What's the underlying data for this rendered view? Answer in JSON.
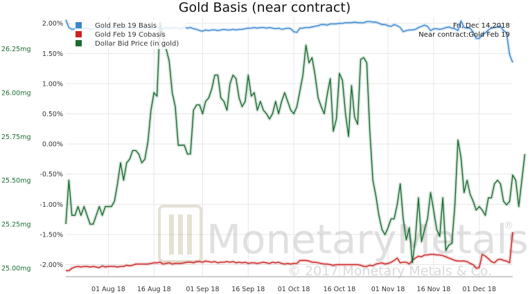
{
  "chart_data": {
    "type": "line",
    "title": "Gold Basis (near contract)",
    "annotation_date": "Fri, Dec 14,2018",
    "annotation_contract": "Near contract:Gold Feb 19",
    "watermark": {
      "brand": "MonetaryMetals",
      "mark": "®",
      "copyright": "© 2017 Monetary Metals & Co."
    },
    "x_ticks": [
      "01 Aug 18",
      "16 Aug 18",
      "01 Sep 18",
      "16 Sep 18",
      "01 Oct 18",
      "16 Oct 18",
      "01 Nov 18",
      "16 Nov 18",
      "01 Dec 18"
    ],
    "x_tick_index": [
      14,
      29,
      45,
      60,
      75,
      90,
      106,
      121,
      136
    ],
    "left_axis": {
      "ticks": [
        "2.00%",
        "1.50%",
        "1.00%",
        "0.50%",
        "0.00%",
        "-0.50%",
        "-1.00%",
        "-1.50%",
        "-2.00%"
      ],
      "range": [
        -2.2,
        2.1
      ]
    },
    "right_axis": {
      "ticks": [
        "26.25mg",
        "26.00mg",
        "25.75mg",
        "25.50mg",
        "25.25mg",
        "25.00mg"
      ],
      "range": [
        24.95,
        26.43
      ]
    },
    "series": [
      {
        "name": "Gold Feb 19 Basis",
        "color": "#3a86d0",
        "axis": "left",
        "values": [
          2.06,
          1.93,
          1.9,
          1.91,
          1.9,
          1.91,
          1.92,
          1.92,
          1.9,
          1.91,
          1.92,
          1.91,
          1.92,
          1.92,
          1.91,
          1.92,
          1.93,
          1.92,
          1.93,
          1.94,
          1.93,
          1.94,
          1.93,
          1.92,
          1.93,
          1.94,
          1.92,
          1.93,
          1.92,
          1.93,
          1.94,
          1.92,
          1.91,
          1.93,
          1.92,
          1.92,
          1.93,
          1.92,
          1.91,
          1.93,
          1.92,
          1.93,
          1.91,
          1.9,
          1.88,
          1.87,
          1.89,
          1.88,
          1.89,
          1.89,
          1.88,
          1.89,
          1.9,
          1.89,
          1.89,
          1.9,
          1.89,
          1.9,
          1.9,
          1.91,
          1.92,
          1.92,
          1.93,
          1.92,
          1.93,
          1.93,
          1.92,
          1.93,
          1.92,
          1.91,
          1.92,
          1.9,
          1.91,
          1.92,
          1.91,
          1.86,
          1.85,
          1.92,
          1.92,
          1.93,
          1.93,
          1.94,
          1.95,
          1.96,
          1.98,
          1.98,
          1.97,
          1.99,
          1.99,
          1.99,
          2.0,
          2.0,
          2.01,
          2.01,
          2.01,
          2.02,
          2.01,
          2.01,
          2.01,
          2.03,
          2.03,
          2.02,
          2.02,
          2.0,
          1.98,
          1.98,
          1.96,
          1.95,
          1.98,
          1.96,
          1.93,
          1.86,
          1.88,
          1.89,
          1.89,
          1.9,
          1.93,
          1.95,
          1.97,
          1.95,
          1.88,
          1.91,
          1.91,
          1.9,
          1.91,
          1.93,
          1.94,
          1.92,
          1.91,
          1.88,
          2.04,
          1.93,
          1.92,
          1.92,
          1.85,
          1.75,
          1.75,
          1.81,
          1.84,
          1.89,
          1.92,
          1.93,
          1.94,
          1.95,
          1.88,
          1.84,
          1.48,
          1.35
        ]
      },
      {
        "name": "Gold Feb 19 Cobasis",
        "color": "#cc2222",
        "axis": "left",
        "values": [
          -2.1,
          -2.1,
          -2.06,
          -2.04,
          -2.03,
          -2.04,
          -2.03,
          -2.03,
          -2.04,
          -2.03,
          -2.04,
          -2.05,
          -2.02,
          -2.04,
          -2.03,
          -2.03,
          -2.03,
          -2.04,
          -2.03,
          -2.03,
          -2.01,
          -2.02,
          -2.01,
          -1.99,
          -1.99,
          -1.99,
          -1.99,
          -1.99,
          -1.98,
          -1.97,
          -1.97,
          -1.96,
          -1.99,
          -1.98,
          -1.97,
          -1.99,
          -1.98,
          -1.98,
          -1.98,
          -1.97,
          -1.96,
          -1.96,
          -1.97,
          -1.95,
          -1.95,
          -1.96,
          -1.94,
          -1.95,
          -1.96,
          -1.95,
          -1.97,
          -1.96,
          -1.96,
          -1.95,
          -1.96,
          -1.95,
          -1.97,
          -1.96,
          -1.97,
          -1.96,
          -1.98,
          -1.97,
          -1.97,
          -1.98,
          -1.97,
          -1.96,
          -1.97,
          -1.98,
          -1.96,
          -1.97,
          -1.96,
          -1.98,
          -1.99,
          -1.98,
          -1.99,
          -1.98,
          -1.98,
          -1.93,
          -1.93,
          -1.93,
          -1.94,
          -1.96,
          -1.96,
          -1.97,
          -1.98,
          -1.99,
          -1.99,
          -2.0,
          -2.01,
          -2.0,
          -2.0,
          -2.0,
          -2.0,
          -2.0,
          -2.0,
          -2.0,
          -2.0,
          -2.01,
          -2.03,
          -2.03,
          -2.01,
          -2.02,
          -1.99,
          -1.98,
          -1.97,
          -1.99,
          -1.98,
          -1.96,
          -1.93,
          -1.89,
          -1.97,
          -1.96,
          -1.96,
          -1.99,
          -1.93,
          -1.89,
          -1.86,
          -1.87,
          -1.84,
          -1.84,
          -1.83,
          -1.83,
          -1.84,
          -1.84,
          -1.85,
          -1.87,
          -1.89,
          -1.91,
          -1.93,
          -1.94,
          -1.94,
          -1.94,
          -1.95,
          -1.98,
          -2.0,
          -2.06,
          -2.05,
          -1.83,
          -1.86,
          -1.9,
          -1.95,
          -1.97,
          -1.92,
          -1.91,
          -1.93,
          -1.94,
          -1.97,
          -1.46
        ]
      },
      {
        "name": "Dollar Bid Price (in gold)",
        "color": "#1a6b30",
        "axis": "right",
        "values": [
          25.25,
          25.5,
          25.3,
          25.3,
          25.35,
          25.3,
          25.35,
          25.3,
          25.25,
          25.25,
          25.3,
          25.35,
          25.3,
          25.35,
          25.35,
          25.35,
          25.38,
          25.48,
          25.6,
          25.5,
          25.6,
          25.62,
          25.67,
          25.67,
          25.65,
          25.6,
          25.62,
          25.72,
          25.9,
          26.0,
          25.98,
          26.4,
          26.32,
          26.25,
          26.18,
          26.0,
          25.92,
          25.7,
          25.7,
          25.7,
          25.65,
          25.65,
          25.9,
          25.93,
          25.93,
          25.88,
          25.95,
          25.97,
          26.02,
          26.1,
          26.1,
          25.97,
          25.95,
          25.9,
          26.05,
          26.1,
          26.08,
          25.97,
          25.92,
          25.95,
          26.1,
          25.98,
          26.0,
          25.9,
          25.95,
          25.9,
          25.88,
          25.85,
          25.88,
          25.95,
          25.88,
          25.95,
          26.0,
          25.95,
          25.9,
          25.88,
          25.92,
          26.01,
          26.1,
          26.27,
          26.17,
          26.2,
          26.1,
          25.97,
          25.92,
          25.88,
          25.99,
          26.08,
          25.78,
          25.85,
          26.11,
          26.07,
          25.88,
          25.75,
          26.04,
          25.86,
          25.82,
          26.19,
          26.2,
          26.17,
          25.78,
          25.5,
          25.41,
          25.3,
          25.22,
          25.19,
          25.23,
          25.28,
          25.28,
          25.36,
          25.48,
          25.28,
          25.16,
          25.23,
          25.03,
          25.17,
          25.4,
          25.15,
          25.22,
          25.28,
          25.43,
          25.33,
          25.22,
          25.18,
          25.4,
          25.1,
          25.13,
          25.14,
          25.36,
          25.73,
          25.63,
          25.43,
          25.5,
          25.42,
          25.38,
          25.33,
          25.35,
          25.33,
          25.3,
          25.4,
          25.4,
          25.48,
          25.5,
          25.48,
          25.38,
          25.36,
          25.38,
          25.53,
          25.5,
          25.35,
          25.5,
          25.65
        ]
      }
    ],
    "legend_position": "top-left",
    "grid": true
  }
}
